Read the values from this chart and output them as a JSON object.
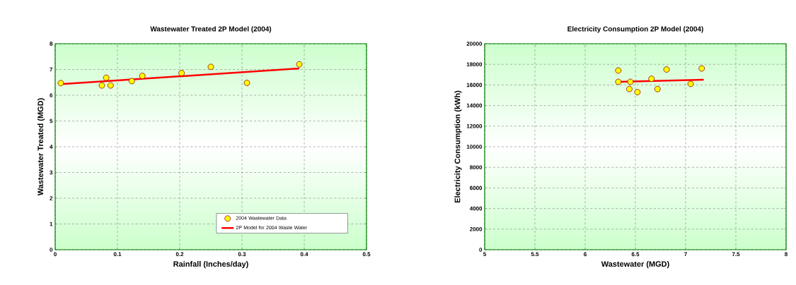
{
  "chart_data": [
    {
      "type": "scatter",
      "title": "Wastewater Treated 2P Model (2004)",
      "xlabel": "Rainfall (Inches/day)",
      "ylabel": "Wastewater Treated (MGD)",
      "xlim": [
        0,
        0.5
      ],
      "xticks": [
        0,
        0.1,
        0.2,
        0.3,
        0.4,
        0.5
      ],
      "ylim": [
        0,
        8
      ],
      "yticks": [
        0,
        1,
        2,
        3,
        4,
        5,
        6,
        7,
        8
      ],
      "grid": true,
      "legend": "bottom right",
      "series": [
        {
          "name": "2004 Wastewater Data",
          "type": "scatter",
          "color": "#ffff00",
          "x": [
            0.009,
            0.075,
            0.082,
            0.089,
            0.123,
            0.14,
            0.203,
            0.25,
            0.308,
            0.392
          ],
          "values": [
            6.47,
            6.38,
            6.68,
            6.38,
            6.55,
            6.75,
            6.86,
            7.1,
            6.48,
            7.2
          ]
        },
        {
          "name": "2P Model for 2004 Waste Water",
          "type": "line",
          "color": "#ff0000",
          "x": [
            0.009,
            0.392
          ],
          "values": [
            6.43,
            7.04
          ]
        }
      ]
    },
    {
      "type": "scatter",
      "title": "Electricity Consumption 2P Model (2004)",
      "xlabel": "Wastewater (MGD)",
      "ylabel": "Electricity Consumption (kWh)",
      "xlim": [
        5,
        8
      ],
      "xticks": [
        5,
        5.5,
        6,
        6.5,
        7,
        7.5,
        8
      ],
      "ylim": [
        0,
        20000
      ],
      "yticks": [
        0,
        2000,
        4000,
        6000,
        8000,
        10000,
        12000,
        14000,
        16000,
        18000,
        20000
      ],
      "grid": true,
      "series": [
        {
          "type": "scatter",
          "color": "#ffff00",
          "x": [
            6.33,
            6.33,
            6.45,
            6.44,
            6.52,
            6.66,
            6.72,
            6.81,
            7.05,
            7.16
          ],
          "values": [
            17400,
            16300,
            16300,
            15600,
            15300,
            16600,
            15600,
            17500,
            16100,
            17600
          ]
        },
        {
          "type": "line",
          "color": "#ff0000",
          "x": [
            6.33,
            7.18
          ],
          "values": [
            16300,
            16500
          ]
        }
      ]
    }
  ]
}
